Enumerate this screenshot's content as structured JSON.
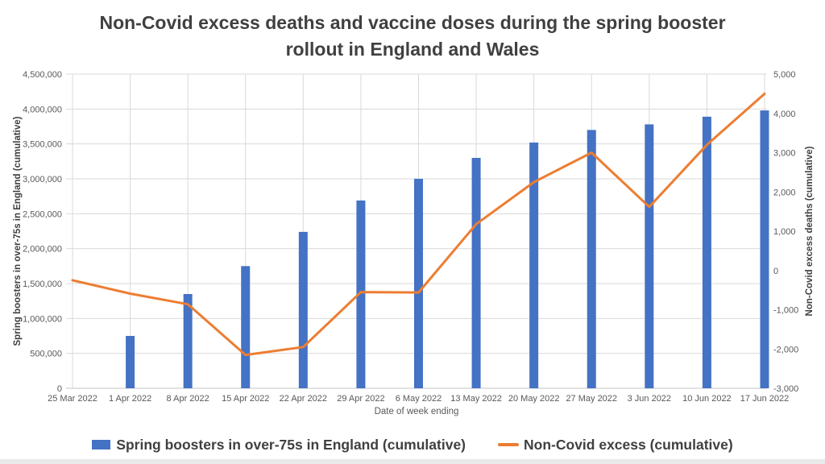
{
  "title": "Non-Covid excess deaths and vaccine doses during the spring booster rollout in England and Wales",
  "title_lines": [
    "Non-Covid excess deaths and vaccine doses during the spring booster",
    "rollout in England and Wales"
  ],
  "chart_data": {
    "type": "bar+line combo (bars on left axis, line on secondary right axis)",
    "categories": [
      "25 Mar 2022",
      "1 Apr 2022",
      "8 Apr 2022",
      "15 Apr 2022",
      "22 Apr 2022",
      "29 Apr 2022",
      "6 May 2022",
      "13 May 2022",
      "20 May 2022",
      "27 May 2022",
      "3 Jun 2022",
      "10 Jun 2022",
      "17 Jun 2022"
    ],
    "series": [
      {
        "name": "Spring boosters in over-75s in England (cumulative)",
        "type": "bar",
        "axis": "left",
        "values": [
          0,
          750000,
          1350000,
          1750000,
          2240000,
          2690000,
          3000000,
          3300000,
          3520000,
          3700000,
          3780000,
          3890000,
          3980000
        ]
      },
      {
        "name": "Non-Covid excess (cumulative)",
        "type": "line",
        "axis": "right",
        "values": [
          -250,
          -590,
          -860,
          -2150,
          -1950,
          -550,
          -560,
          1180,
          2250,
          3000,
          1620,
          3200,
          4500
        ]
      }
    ],
    "x_axis": {
      "title": "Date of week ending"
    },
    "left_axis": {
      "title": "Spring boosters in over-75s in England (cumulative)",
      "min": 0,
      "max": 4500000,
      "step": 500000,
      "tick_labels": [
        "0",
        "500,000",
        "1,000,000",
        "1,500,000",
        "2,000,000",
        "2,500,000",
        "3,000,000",
        "3,500,000",
        "4,000,000",
        "4,500,000"
      ]
    },
    "right_axis": {
      "title": "Non-Covid excess deaths (cumulative)",
      "min": -3000,
      "max": 5000,
      "step": 1000,
      "tick_labels": [
        "-3,000",
        "-2,000",
        "-1,000",
        "0",
        "1,000",
        "2,000",
        "3,000",
        "4,000",
        "5,000"
      ]
    },
    "legend": [
      {
        "label": "Spring boosters in over-75s in England (cumulative)",
        "marker": "square",
        "color": "#4472C4"
      },
      {
        "label": "Non-Covid excess (cumulative)",
        "marker": "line",
        "color": "#ED7D31"
      }
    ],
    "grid": "horizontal and vertical light-gray gridlines",
    "legend_position": "bottom",
    "colors": {
      "bar": "#4472C4",
      "line": "#ED7D31",
      "gridline": "#D9D9D9",
      "axis_line": "#C6C6C6",
      "tick_text": "#595959",
      "axis_title_text": "#404040",
      "title_text": "#404040"
    }
  }
}
